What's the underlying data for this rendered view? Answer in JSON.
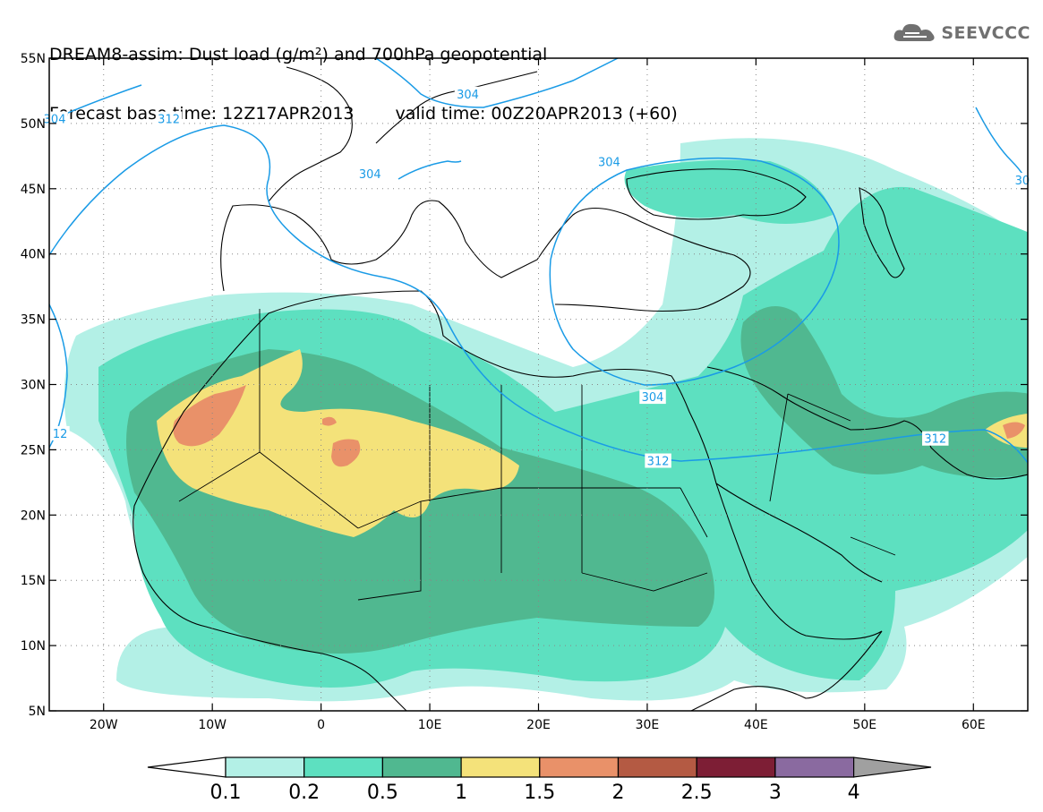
{
  "header": {
    "title_line1": "DREAM8-assim: Dust load (g/m²) and 700hPa geopotential",
    "base_time": "Forecast base time: 12Z17APR2013",
    "valid_time": "valid time: 00Z20APR2013 (+60)"
  },
  "logo": {
    "text": "SEEVCCC",
    "icon": "cloud-icon"
  },
  "map": {
    "projection": "lat-lon",
    "lon_range": [
      -25,
      65
    ],
    "lat_range": [
      5,
      55
    ],
    "lat_ticks": [
      {
        "v": 55,
        "label": "55N"
      },
      {
        "v": 50,
        "label": "50N"
      },
      {
        "v": 45,
        "label": "45N"
      },
      {
        "v": 40,
        "label": "40N"
      },
      {
        "v": 35,
        "label": "35N"
      },
      {
        "v": 30,
        "label": "30N"
      },
      {
        "v": 25,
        "label": "25N"
      },
      {
        "v": 20,
        "label": "20N"
      },
      {
        "v": 15,
        "label": "15N"
      },
      {
        "v": 10,
        "label": "10N"
      },
      {
        "v": 5,
        "label": "5N"
      }
    ],
    "lon_ticks": [
      {
        "v": -20,
        "label": "20W"
      },
      {
        "v": -10,
        "label": "10W"
      },
      {
        "v": 0,
        "label": "0"
      },
      {
        "v": 10,
        "label": "10E"
      },
      {
        "v": 20,
        "label": "20E"
      },
      {
        "v": 30,
        "label": "30E"
      },
      {
        "v": 40,
        "label": "40E"
      },
      {
        "v": 50,
        "label": "50E"
      },
      {
        "v": 60,
        "label": "60E"
      }
    ],
    "contour_color": "#1a9be6",
    "contour_labels": [
      {
        "text": "312",
        "lon": -14,
        "lat": 50.3
      },
      {
        "text": "304",
        "lon": 13.5,
        "lat": 52.2
      },
      {
        "text": "304",
        "lon": 4.5,
        "lat": 46.1
      },
      {
        "text": "304",
        "lon": 26.5,
        "lat": 47.0
      },
      {
        "text": "304",
        "lon": 30.5,
        "lat": 29.0
      },
      {
        "text": "312",
        "lon": 31.0,
        "lat": 24.1
      },
      {
        "text": "312",
        "lon": 56.5,
        "lat": 25.8
      },
      {
        "text": "304",
        "lon": -24.5,
        "lat": 50.3
      },
      {
        "text": "12",
        "lon": -24,
        "lat": 26.2
      },
      {
        "text": "30",
        "lon": 64.5,
        "lat": 45.6
      }
    ]
  },
  "legend": {
    "levels": [
      "0.1",
      "0.2",
      "0.5",
      "1",
      "1.5",
      "2",
      "2.5",
      "3",
      "4"
    ],
    "colors": [
      "#b3f0e6",
      "#5de0c0",
      "#50b890",
      "#f4e27a",
      "#e99169",
      "#b45a43",
      "#7d1e35",
      "#8a6aa0"
    ],
    "under_color": "#ffffff",
    "over_color": "#a0a0a0"
  }
}
